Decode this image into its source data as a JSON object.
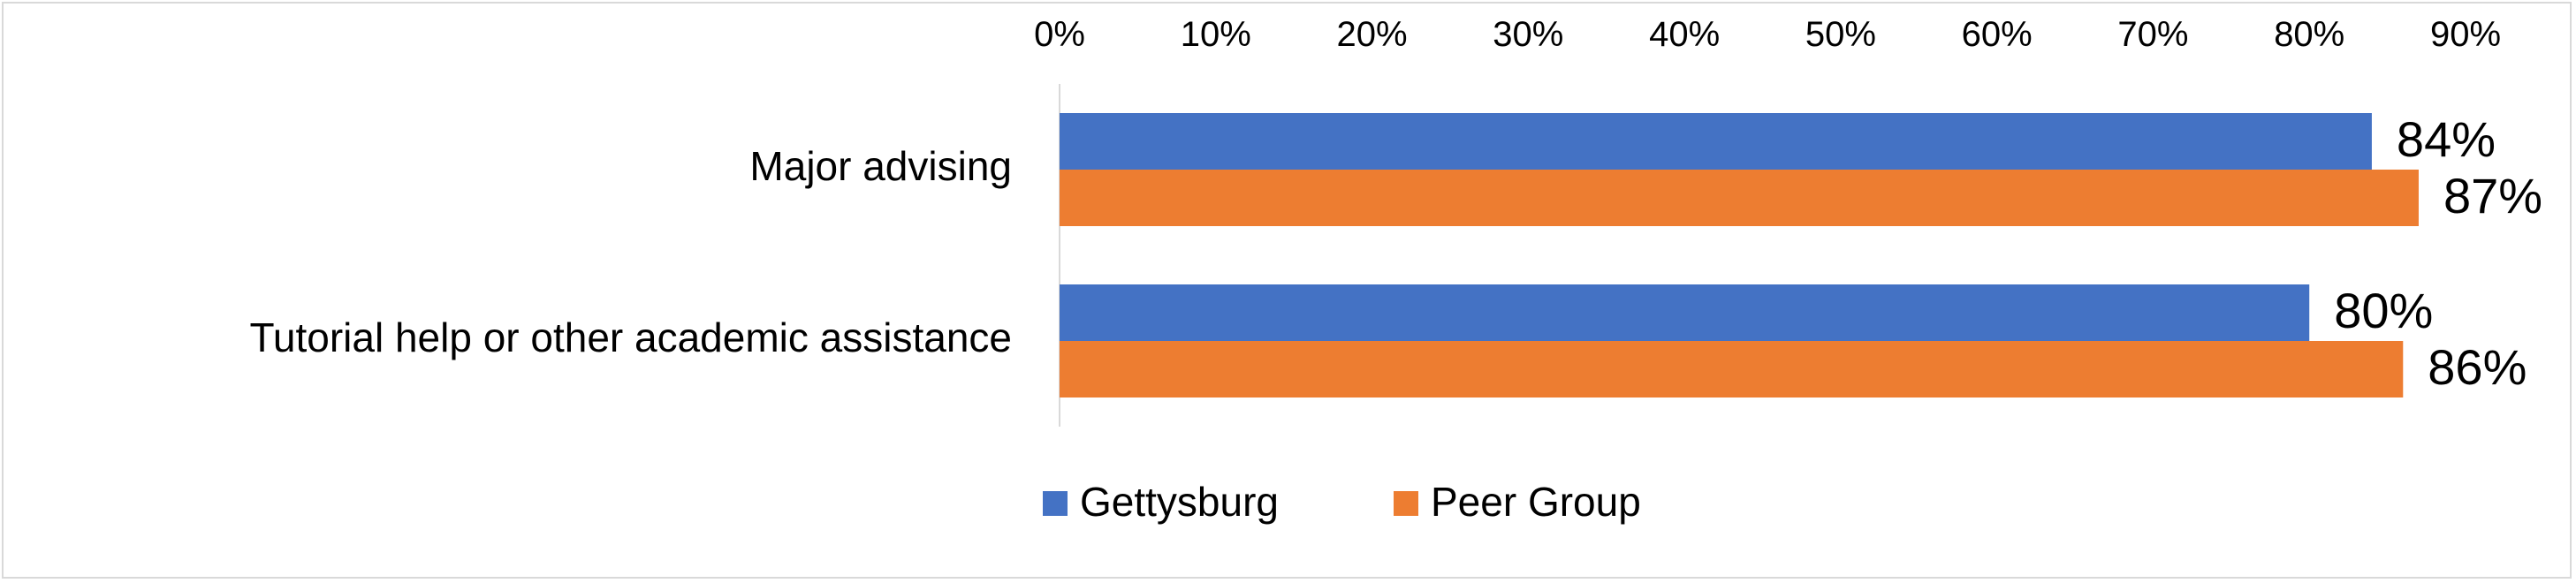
{
  "chart_data": {
    "type": "bar",
    "orientation": "horizontal",
    "title": "",
    "xlabel": "",
    "ylabel": "",
    "categories": [
      "Major advising",
      "Tutorial help or other academic assistance"
    ],
    "series": [
      {
        "name": "Gettysburg",
        "color": "#4472C4",
        "values": [
          84,
          80
        ],
        "labels": [
          "84%",
          "80%"
        ]
      },
      {
        "name": "Peer Group",
        "color": "#ED7D31",
        "values": [
          87,
          86
        ],
        "labels": [
          "87%",
          "86%"
        ]
      }
    ],
    "xlim": [
      0,
      90
    ],
    "x_ticks": [
      0,
      10,
      20,
      30,
      40,
      50,
      60,
      70,
      80,
      90
    ],
    "x_tick_labels": [
      "0%",
      "10%",
      "20%",
      "30%",
      "40%",
      "50%",
      "60%",
      "70%",
      "80%",
      "90%"
    ],
    "x_axis_position": "top",
    "grid": false,
    "legend_position": "bottom"
  }
}
